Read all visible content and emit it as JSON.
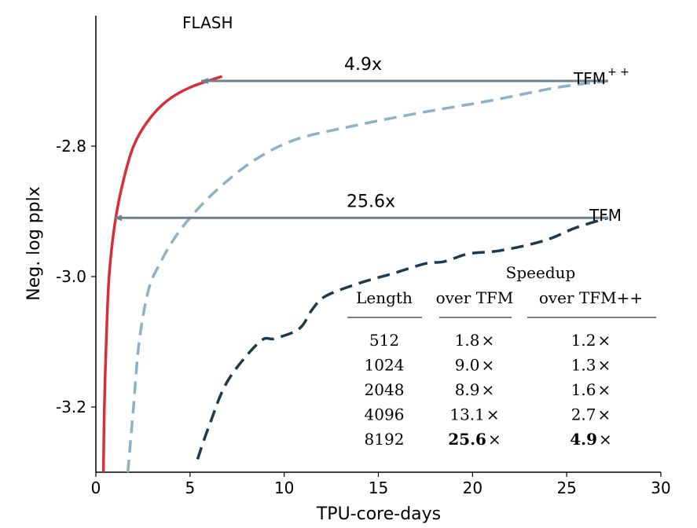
{
  "chart_data": {
    "type": "line",
    "title": "",
    "xlabel": "TPU-core-days",
    "ylabel": "Neg. log pplx",
    "xlim": [
      0,
      30
    ],
    "ylim": [
      -3.3,
      -2.6
    ],
    "xticks": [
      0,
      5,
      10,
      15,
      20,
      25,
      30
    ],
    "yticks": [
      -2.8,
      -3.0,
      -3.2
    ],
    "ytick_labels": [
      "-2.8",
      "-3.0",
      "-3.2"
    ],
    "grid": false,
    "series": [
      {
        "name": "FLASH",
        "color": "#d62f3a",
        "style": "solid",
        "points": [
          [
            0.4,
            -3.3
          ],
          [
            0.45,
            -3.2
          ],
          [
            0.55,
            -3.1
          ],
          [
            0.7,
            -3.0
          ],
          [
            1.0,
            -2.92
          ],
          [
            1.4,
            -2.86
          ],
          [
            2.0,
            -2.8
          ],
          [
            2.8,
            -2.76
          ],
          [
            3.8,
            -2.73
          ],
          [
            5.0,
            -2.71
          ],
          [
            6.7,
            -2.693
          ]
        ]
      },
      {
        "name": "TFM++",
        "color": "#8eb1c7",
        "style": "dashed",
        "points": [
          [
            1.7,
            -3.3
          ],
          [
            2.0,
            -3.2
          ],
          [
            2.3,
            -3.1
          ],
          [
            2.8,
            -3.02
          ],
          [
            3.4,
            -2.98
          ],
          [
            4.2,
            -2.94
          ],
          [
            5.3,
            -2.9
          ],
          [
            6.7,
            -2.86
          ],
          [
            8.5,
            -2.82
          ],
          [
            10.6,
            -2.79
          ],
          [
            13.5,
            -2.77
          ],
          [
            17.0,
            -2.75
          ],
          [
            21.0,
            -2.73
          ],
          [
            24.5,
            -2.71
          ],
          [
            27.2,
            -2.7
          ]
        ]
      },
      {
        "name": "TFM",
        "color": "#1d3a4f",
        "style": "dashed",
        "points": [
          [
            5.4,
            -3.28
          ],
          [
            6.0,
            -3.23
          ],
          [
            7.0,
            -3.16
          ],
          [
            8.7,
            -3.1
          ],
          [
            9.5,
            -3.095
          ],
          [
            10.8,
            -3.08
          ],
          [
            11.5,
            -3.05
          ],
          [
            12.2,
            -3.03
          ],
          [
            14.0,
            -3.01
          ],
          [
            15.8,
            -2.995
          ],
          [
            17.5,
            -2.98
          ],
          [
            18.5,
            -2.977
          ],
          [
            19.8,
            -2.965
          ],
          [
            21.5,
            -2.96
          ],
          [
            23.8,
            -2.945
          ],
          [
            25.5,
            -2.925
          ],
          [
            27.2,
            -2.91
          ]
        ]
      }
    ],
    "series_labels": {
      "flash": "FLASH",
      "tfmpp_base": "TFM",
      "tfmpp_sup": "+ +",
      "tfm": "TFM"
    },
    "annotations": [
      {
        "text": "4.9x",
        "from_x": 27.2,
        "to_x": 5.6,
        "y": -2.7
      },
      {
        "text": "25.6x",
        "from_x": 27.2,
        "to_x": 1.0,
        "y": -2.91
      }
    ],
    "table": {
      "group_header": "Speedup",
      "columns": [
        "Length",
        "over TFM",
        "over TFM++"
      ],
      "rows": [
        [
          "512",
          "1.8",
          "1.2"
        ],
        [
          "1024",
          "9.0",
          "1.3"
        ],
        [
          "2048",
          "8.9",
          "1.6"
        ],
        [
          "4096",
          "13.1",
          "2.7"
        ],
        [
          "8192",
          "25.6",
          "4.9"
        ]
      ],
      "bold_last_row": true,
      "times_symbol": "×"
    }
  }
}
